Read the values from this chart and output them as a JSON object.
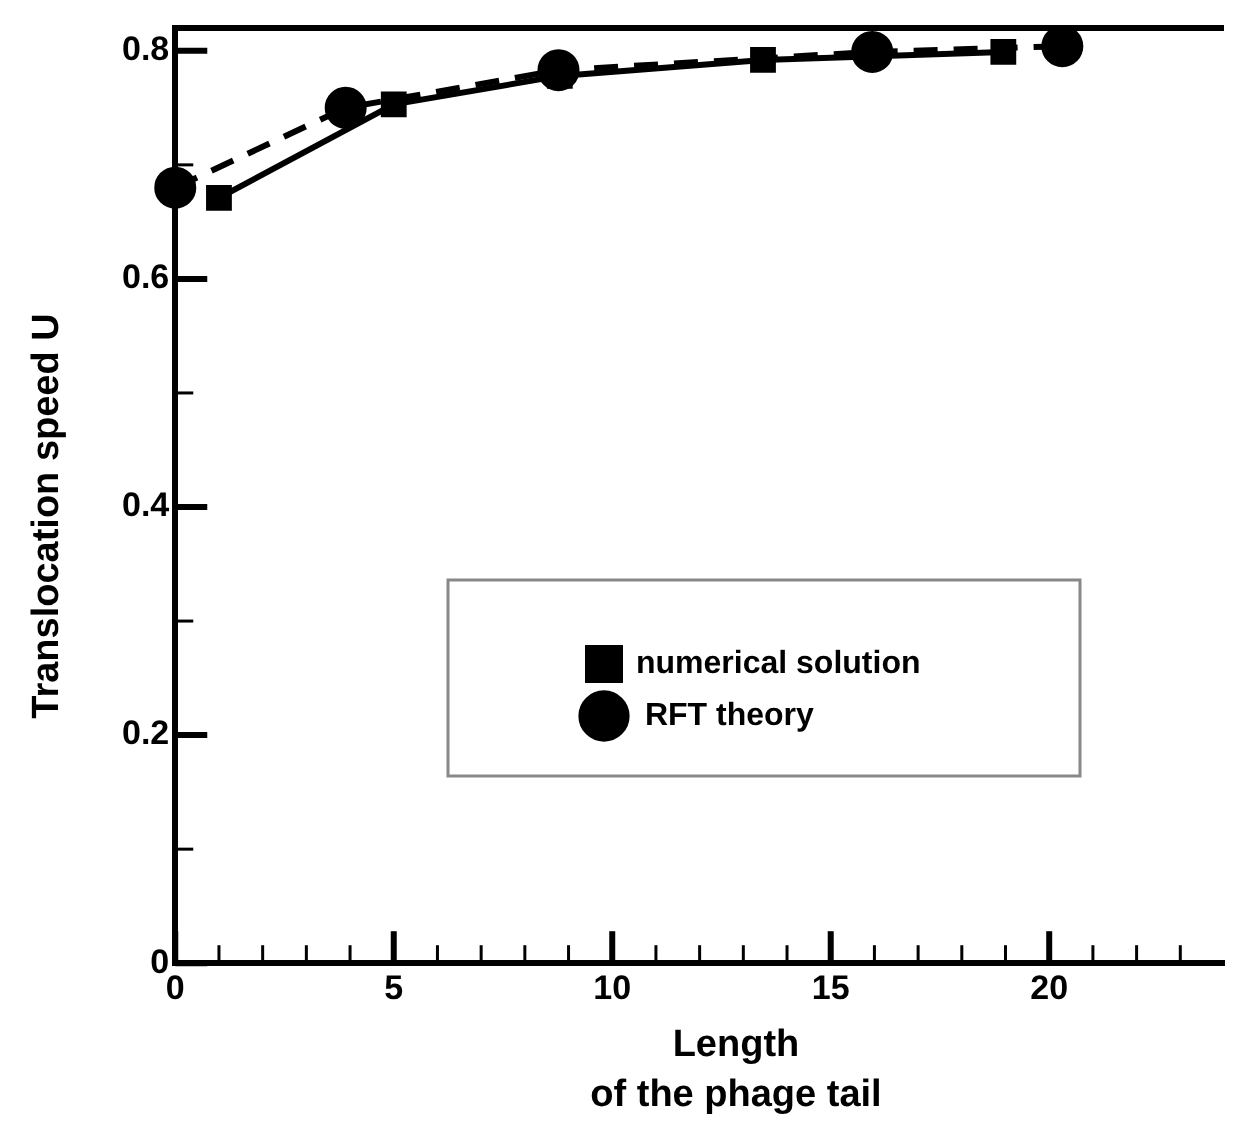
{
  "chart_data": {
    "type": "line",
    "xlabel": "Length\nof the phage tail",
    "ylabel": "Translocation speed U",
    "xlim": [
      0,
      24
    ],
    "ylim": [
      0,
      0.82
    ],
    "xticks": [
      0,
      {
        "value": 1,
        "label": null
      },
      {
        "value": 2,
        "label": null
      },
      {
        "value": 3,
        "label": null
      },
      {
        "value": 4,
        "label": null
      },
      5,
      {
        "value": 6,
        "label": null
      },
      {
        "value": 7,
        "label": null
      },
      {
        "value": 8,
        "label": null
      },
      {
        "value": 9,
        "label": null
      },
      10,
      {
        "value": 11,
        "label": null
      },
      {
        "value": 12,
        "label": null
      },
      {
        "value": 13,
        "label": null
      },
      {
        "value": 14,
        "label": null
      },
      15,
      {
        "value": 16,
        "label": null
      },
      {
        "value": 17,
        "label": null
      },
      {
        "value": 18,
        "label": null
      },
      {
        "value": 19,
        "label": null
      },
      20,
      {
        "value": 21,
        "label": null
      },
      {
        "value": 22,
        "label": null
      },
      {
        "value": 23,
        "label": null
      }
    ],
    "yticks": [
      0,
      {
        "value": 0.1,
        "label": null
      },
      0.2,
      {
        "value": 0.3,
        "label": null
      },
      0.4,
      {
        "value": 0.5,
        "label": null
      },
      0.6,
      {
        "value": 0.7,
        "label": null
      },
      0.8
    ],
    "grid": false,
    "legend": "center",
    "series": [
      {
        "name": "numerical solution",
        "color": "#000000",
        "marker": "square",
        "line_style": "solid",
        "x": [
          1,
          5,
          8.8,
          13.45,
          18.95
        ],
        "values": [
          0.671,
          0.753,
          0.778,
          0.792,
          0.799
        ]
      },
      {
        "name": " RFT theory",
        "color": "#000000",
        "marker": "circle",
        "line_style": "dashed",
        "x": [
          0,
          3.9,
          8.77,
          15.95,
          20.3
        ],
        "values": [
          0.68,
          0.75,
          0.783,
          0.799,
          0.804
        ]
      }
    ]
  }
}
